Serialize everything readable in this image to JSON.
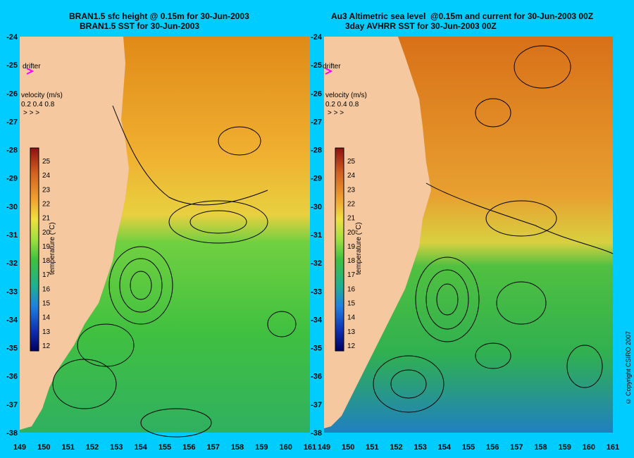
{
  "left_panel": {
    "title_line1": "BRAN1.5 sfc height @ 0.15m for 30-Jun-2003",
    "title_line2": "BRAN1.5 SST for 30-Jun-2003"
  },
  "right_panel": {
    "title_line1": "Au3 Altimetric sea level  @0.15m and current for 30-Jun-2003 00Z",
    "title_line2": "3day AVHRR SST for 30-Jun-2003 00Z"
  },
  "legend": {
    "drifter_label": "drifter",
    "velocity_label": "velocity (m/s)",
    "velocity_scale": "0.2 0.4 0.8",
    "colorbar_label": "temperature (°C)",
    "colorbar_ticks": [
      "25",
      "24",
      "23",
      "22",
      "21",
      "20",
      "19",
      "18",
      "17",
      "16",
      "15",
      "14",
      "13",
      "12"
    ]
  },
  "axes": {
    "lat_ticks": [
      "-24",
      "-25",
      "-26",
      "-27",
      "-28",
      "-29",
      "-30",
      "-31",
      "-32",
      "-33",
      "-34",
      "-35",
      "-36",
      "-37",
      "-38"
    ],
    "left_lon_ticks": [
      "149",
      "150",
      "151",
      "152",
      "153",
      "154",
      "155",
      "156",
      "157",
      "158",
      "159",
      "160",
      "161"
    ],
    "right_lon_ticks": [
      "149",
      "150",
      "151",
      "152",
      "153",
      "154",
      "155",
      "156",
      "157",
      "158",
      "159",
      "160",
      "161"
    ]
  },
  "copyright": "© Copyright CSIRO 2007",
  "colors": {
    "background": "#00ccff",
    "land": "#f5c8a0",
    "warm": "#e89a20",
    "mid": "#c8e040",
    "cool": "#40c040",
    "cold": "#2060c0"
  }
}
